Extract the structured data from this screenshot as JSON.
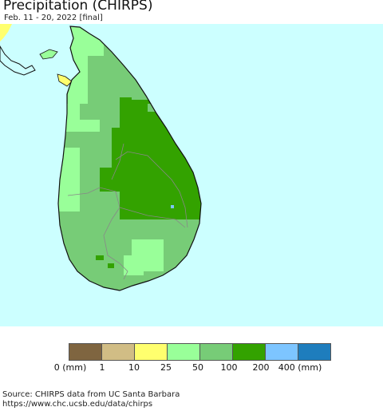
{
  "header": {
    "title": "Precipitation (CHIRPS)",
    "subtitle": "Feb. 11 - 20, 2022 [final]"
  },
  "map": {
    "ocean_color": "#ccffff",
    "region": "Sri Lanka"
  },
  "legend": {
    "items": [
      {
        "color": "#7f6540",
        "from": "0 (mm)"
      },
      {
        "color": "#d1bd85",
        "from": "1"
      },
      {
        "color": "#ffff6e",
        "from": "10"
      },
      {
        "color": "#99ff99",
        "from": "25"
      },
      {
        "color": "#77cc77",
        "from": "50"
      },
      {
        "color": "#33a200",
        "from": "100"
      },
      {
        "color": "#7dc5ff",
        "from": "200"
      },
      {
        "color": "#1e7dbd",
        "from": "400 (mm)"
      }
    ],
    "tick_labels": [
      "0 (mm)",
      "1",
      "10",
      "25",
      "50",
      "100",
      "200",
      "400 (mm)"
    ]
  },
  "footer": {
    "source_line": "Source: CHIRPS data from UC Santa Barbara",
    "url_line": "https://www.chc.ucsb.edu/data/chirps"
  }
}
